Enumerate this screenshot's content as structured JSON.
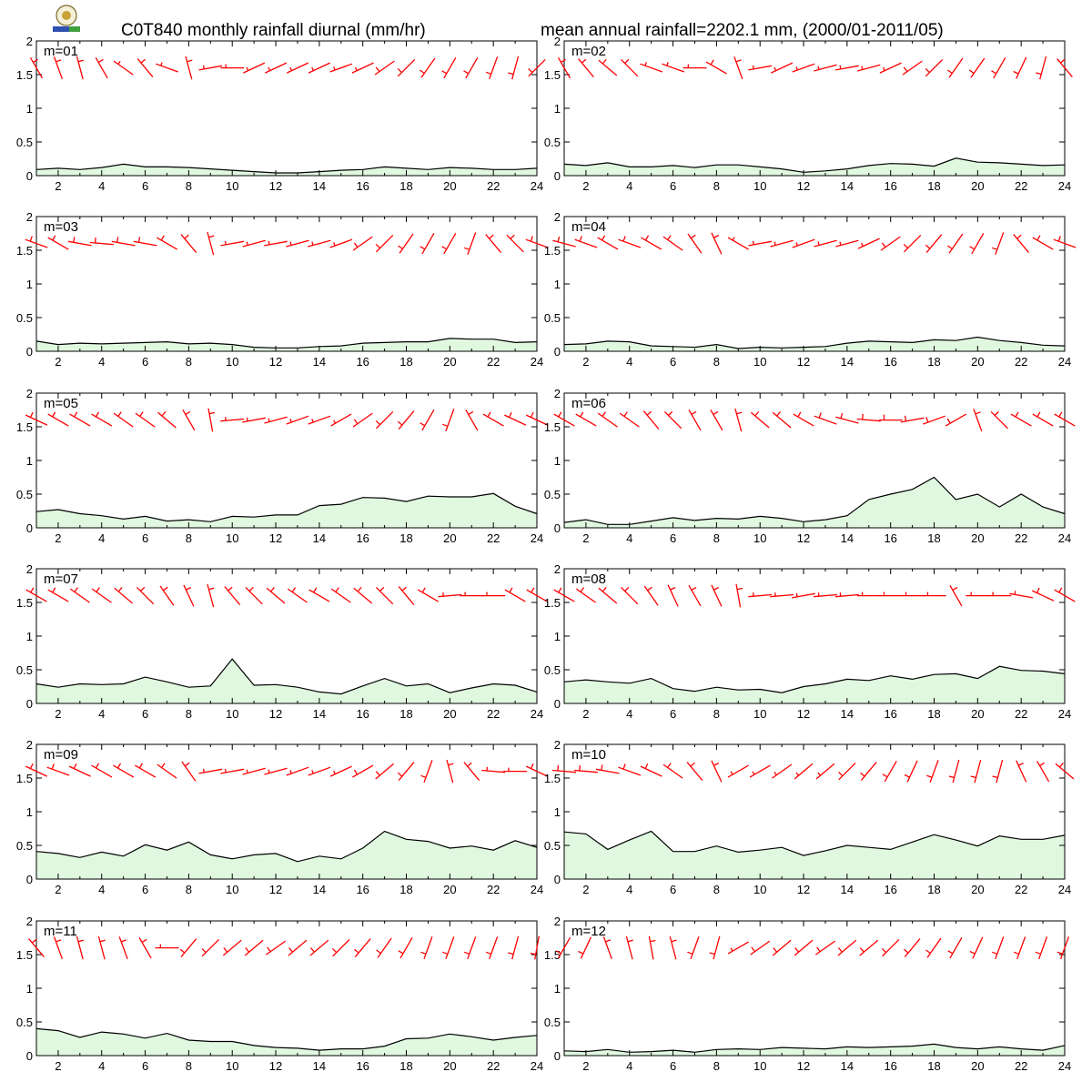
{
  "header": {
    "title_left": "C0T840 monthly rainfall diurnal (mm/hr)",
    "title_right": "mean annual rainfall=2202.1 mm, (2000/01-2011/05)"
  },
  "colors": {
    "rain_fill": "#e0f8e0",
    "rain_line": "#000000",
    "wind_barb": "#ff0000"
  },
  "chart_data": {
    "type": "area",
    "x_ticks": [
      "2",
      "4",
      "6",
      "8",
      "10",
      "12",
      "14",
      "16",
      "18",
      "20",
      "22",
      "24"
    ],
    "y_ticks": [
      "0",
      "0.5",
      "1",
      "1.5",
      "2"
    ],
    "xlim": [
      1,
      24
    ],
    "ylim": [
      0,
      2
    ],
    "grid": false,
    "panels": [
      {
        "label": "m=01",
        "values": [
          0.09,
          0.11,
          0.09,
          0.12,
          0.17,
          0.13,
          0.13,
          0.12,
          0.1,
          0.08,
          0.06,
          0.04,
          0.04,
          0.06,
          0.08,
          0.09,
          0.13,
          0.11,
          0.09,
          0.12,
          0.11,
          0.09,
          0.09,
          0.11
        ],
        "wind_dir": [
          330,
          340,
          345,
          330,
          305,
          320,
          290,
          345,
          260,
          270,
          245,
          245,
          245,
          245,
          250,
          245,
          235,
          225,
          215,
          210,
          210,
          200,
          195,
          225
        ],
        "wind_spd": [
          6,
          5,
          5,
          5,
          4,
          5,
          4,
          7,
          3,
          4,
          4,
          4,
          3,
          4,
          4,
          4,
          5,
          5,
          5,
          6,
          6,
          5,
          5,
          6
        ]
      },
      {
        "label": "m=02",
        "values": [
          0.17,
          0.15,
          0.19,
          0.13,
          0.13,
          0.15,
          0.12,
          0.16,
          0.16,
          0.13,
          0.1,
          0.05,
          0.07,
          0.1,
          0.15,
          0.18,
          0.17,
          0.14,
          0.26,
          0.2,
          0.19,
          0.17,
          0.15,
          0.16
        ],
        "wind_dir": [
          330,
          320,
          310,
          315,
          290,
          290,
          270,
          300,
          340,
          260,
          245,
          250,
          255,
          260,
          255,
          245,
          235,
          225,
          215,
          215,
          210,
          205,
          195,
          320
        ],
        "wind_spd": [
          6,
          5,
          5,
          5,
          4,
          4,
          4,
          5,
          6,
          4,
          4,
          4,
          4,
          4,
          4,
          4,
          5,
          5,
          6,
          6,
          6,
          5,
          5,
          6
        ]
      },
      {
        "label": "m=03",
        "values": [
          0.15,
          0.1,
          0.12,
          0.11,
          0.12,
          0.13,
          0.14,
          0.11,
          0.12,
          0.1,
          0.06,
          0.05,
          0.05,
          0.07,
          0.08,
          0.12,
          0.13,
          0.14,
          0.14,
          0.19,
          0.18,
          0.18,
          0.13,
          0.14
        ],
        "wind_dir": [
          290,
          300,
          280,
          275,
          280,
          280,
          300,
          320,
          345,
          260,
          255,
          260,
          255,
          255,
          250,
          235,
          225,
          215,
          210,
          210,
          200,
          320,
          315,
          290
        ],
        "wind_spd": [
          5,
          5,
          5,
          5,
          5,
          5,
          5,
          5,
          6,
          4,
          4,
          4,
          4,
          4,
          4,
          5,
          5,
          5,
          6,
          6,
          6,
          6,
          5,
          5
        ],
        "calm": []
      },
      {
        "label": "m=04",
        "values": [
          0.1,
          0.11,
          0.15,
          0.14,
          0.08,
          0.07,
          0.06,
          0.1,
          0.04,
          0.06,
          0.05,
          0.06,
          0.07,
          0.12,
          0.15,
          0.14,
          0.13,
          0.17,
          0.16,
          0.21,
          0.16,
          0.13,
          0.09,
          0.08
        ],
        "wind_dir": [
          285,
          290,
          300,
          290,
          300,
          305,
          325,
          335,
          300,
          260,
          255,
          250,
          255,
          255,
          245,
          235,
          225,
          220,
          215,
          210,
          200,
          320,
          300,
          290
        ],
        "wind_spd": [
          5,
          5,
          5,
          5,
          5,
          5,
          5,
          5,
          4,
          4,
          4,
          4,
          4,
          4,
          4,
          5,
          5,
          5,
          6,
          6,
          6,
          6,
          5,
          5
        ]
      },
      {
        "label": "m=05",
        "values": [
          0.24,
          0.27,
          0.21,
          0.18,
          0.13,
          0.17,
          0.1,
          0.12,
          0.09,
          0.17,
          0.16,
          0.19,
          0.19,
          0.33,
          0.35,
          0.45,
          0.44,
          0.39,
          0.47,
          0.46,
          0.46,
          0.51,
          0.32,
          0.21
        ],
        "wind_dir": [
          295,
          300,
          300,
          300,
          305,
          305,
          310,
          330,
          350,
          265,
          260,
          255,
          250,
          250,
          240,
          235,
          225,
          220,
          210,
          200,
          330,
          300,
          295,
          295
        ],
        "wind_spd": [
          5,
          5,
          5,
          5,
          5,
          5,
          5,
          5,
          5,
          4,
          4,
          4,
          4,
          4,
          4,
          5,
          5,
          5,
          6,
          6,
          6,
          5,
          5,
          5
        ]
      },
      {
        "label": "m=06",
        "values": [
          0.08,
          0.12,
          0.05,
          0.05,
          0.1,
          0.15,
          0.11,
          0.14,
          0.13,
          0.17,
          0.14,
          0.09,
          0.12,
          0.18,
          0.42,
          0.5,
          0.57,
          0.75,
          0.42,
          0.5,
          0.31,
          0.5,
          0.31,
          0.21
        ],
        "wind_dir": [
          300,
          300,
          305,
          305,
          320,
          315,
          330,
          330,
          345,
          310,
          310,
          300,
          290,
          285,
          275,
          270,
          260,
          250,
          240,
          340,
          315,
          300,
          300,
          300
        ],
        "wind_spd": [
          5,
          5,
          5,
          5,
          5,
          5,
          5,
          5,
          5,
          5,
          5,
          5,
          5,
          5,
          5,
          5,
          5,
          5,
          6,
          6,
          5,
          5,
          5,
          5
        ]
      },
      {
        "label": "m=07",
        "values": [
          0.29,
          0.24,
          0.29,
          0.28,
          0.29,
          0.39,
          0.32,
          0.24,
          0.26,
          0.66,
          0.27,
          0.28,
          0.24,
          0.17,
          0.14,
          0.26,
          0.37,
          0.26,
          0.29,
          0.16,
          0.23,
          0.29,
          0.27,
          0.17
        ],
        "wind_dir": [
          300,
          300,
          305,
          305,
          310,
          315,
          325,
          335,
          345,
          320,
          315,
          310,
          305,
          300,
          305,
          310,
          315,
          320,
          300,
          265,
          270,
          270,
          300,
          300
        ],
        "wind_spd": [
          5,
          5,
          5,
          5,
          5,
          5,
          5,
          5,
          5,
          5,
          5,
          5,
          5,
          5,
          5,
          5,
          5,
          5,
          5,
          4,
          4,
          4,
          5,
          5
        ]
      },
      {
        "label": "m=08",
        "values": [
          0.32,
          0.35,
          0.32,
          0.3,
          0.37,
          0.22,
          0.18,
          0.24,
          0.2,
          0.21,
          0.16,
          0.25,
          0.29,
          0.36,
          0.34,
          0.41,
          0.36,
          0.43,
          0.44,
          0.37,
          0.55,
          0.49,
          0.48,
          0.44
        ],
        "wind_dir": [
          300,
          305,
          310,
          315,
          325,
          335,
          330,
          335,
          350,
          265,
          265,
          260,
          265,
          265,
          270,
          270,
          270,
          270,
          330,
          270,
          270,
          280,
          295,
          300
        ],
        "wind_spd": [
          5,
          5,
          5,
          5,
          5,
          5,
          5,
          5,
          5,
          4,
          4,
          4,
          4,
          4,
          4,
          4,
          4,
          4,
          5,
          4,
          4,
          4,
          5,
          5
        ]
      },
      {
        "label": "m=09",
        "values": [
          0.41,
          0.38,
          0.32,
          0.4,
          0.34,
          0.51,
          0.43,
          0.55,
          0.36,
          0.3,
          0.36,
          0.38,
          0.26,
          0.34,
          0.3,
          0.46,
          0.71,
          0.59,
          0.56,
          0.46,
          0.49,
          0.43,
          0.57,
          0.47
        ],
        "wind_dir": [
          295,
          290,
          295,
          300,
          300,
          300,
          305,
          325,
          260,
          260,
          255,
          255,
          250,
          250,
          245,
          240,
          230,
          220,
          200,
          345,
          320,
          275,
          270,
          295
        ],
        "wind_spd": [
          5,
          5,
          5,
          5,
          5,
          5,
          5,
          5,
          4,
          4,
          4,
          4,
          4,
          4,
          4,
          5,
          5,
          6,
          6,
          6,
          6,
          4,
          4,
          5
        ]
      },
      {
        "label": "m=10",
        "values": [
          0.7,
          0.67,
          0.44,
          0.58,
          0.71,
          0.41,
          0.41,
          0.49,
          0.4,
          0.43,
          0.47,
          0.35,
          0.42,
          0.5,
          0.47,
          0.44,
          0.55,
          0.66,
          0.58,
          0.49,
          0.64,
          0.59,
          0.59,
          0.65
        ],
        "wind_dir": [
          275,
          275,
          280,
          290,
          295,
          305,
          320,
          335,
          240,
          240,
          235,
          230,
          230,
          225,
          220,
          210,
          205,
          200,
          195,
          195,
          195,
          335,
          330,
          310
        ],
        "wind_spd": [
          5,
          5,
          5,
          5,
          5,
          5,
          5,
          5,
          4,
          4,
          4,
          4,
          4,
          5,
          5,
          5,
          5,
          5,
          6,
          6,
          6,
          6,
          6,
          6
        ]
      },
      {
        "label": "m=11",
        "values": [
          0.4,
          0.37,
          0.27,
          0.35,
          0.32,
          0.26,
          0.33,
          0.23,
          0.21,
          0.21,
          0.15,
          0.12,
          0.11,
          0.08,
          0.1,
          0.1,
          0.14,
          0.25,
          0.26,
          0.32,
          0.28,
          0.23,
          0.27,
          0.3
        ],
        "wind_dir": [
          320,
          340,
          345,
          345,
          340,
          330,
          270,
          220,
          225,
          230,
          230,
          235,
          230,
          230,
          225,
          220,
          215,
          210,
          200,
          200,
          200,
          200,
          195,
          190
        ],
        "wind_spd": [
          6,
          6,
          6,
          6,
          6,
          5,
          4,
          5,
          5,
          5,
          5,
          5,
          5,
          5,
          5,
          5,
          5,
          5,
          6,
          6,
          6,
          6,
          6,
          6
        ]
      },
      {
        "label": "m=12",
        "values": [
          0.07,
          0.06,
          0.09,
          0.05,
          0.06,
          0.08,
          0.05,
          0.09,
          0.1,
          0.09,
          0.12,
          0.11,
          0.1,
          0.13,
          0.12,
          0.13,
          0.14,
          0.17,
          0.12,
          0.1,
          0.13,
          0.1,
          0.08,
          0.15
        ],
        "wind_dir": [
          210,
          205,
          340,
          345,
          350,
          345,
          200,
          195,
          240,
          235,
          230,
          230,
          235,
          230,
          230,
          225,
          220,
          215,
          210,
          205,
          200,
          200,
          200,
          200
        ],
        "wind_spd": [
          6,
          6,
          6,
          6,
          6,
          6,
          6,
          6,
          4,
          5,
          5,
          5,
          5,
          5,
          5,
          5,
          5,
          5,
          6,
          6,
          6,
          6,
          6,
          6
        ]
      }
    ]
  }
}
